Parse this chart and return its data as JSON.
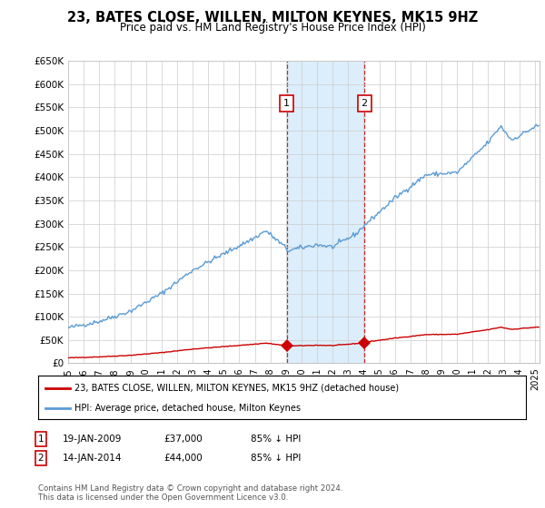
{
  "title": "23, BATES CLOSE, WILLEN, MILTON KEYNES, MK15 9HZ",
  "subtitle": "Price paid vs. HM Land Registry's House Price Index (HPI)",
  "hpi_color": "#5b9bd5",
  "price_color": "#cc0000",
  "shade_color": "#dceefb",
  "sale1_x": 2009.05,
  "sale2_x": 2014.04,
  "sale1_price": 37000,
  "sale2_price": 44000,
  "ylim": [
    0,
    650000
  ],
  "xlim_start": 1995.0,
  "xlim_end": 2025.3,
  "xtick_years": [
    1995,
    1996,
    1997,
    1998,
    1999,
    2000,
    2001,
    2002,
    2003,
    2004,
    2005,
    2006,
    2007,
    2008,
    2009,
    2010,
    2011,
    2012,
    2013,
    2014,
    2015,
    2016,
    2017,
    2018,
    2019,
    2020,
    2021,
    2022,
    2023,
    2024,
    2025
  ],
  "legend_house_label": "23, BATES CLOSE, WILLEN, MILTON KEYNES, MK15 9HZ (detached house)",
  "legend_hpi_label": "HPI: Average price, detached house, Milton Keynes",
  "footnote": "Contains HM Land Registry data © Crown copyright and database right 2024.\nThis data is licensed under the Open Government Licence v3.0.",
  "table_rows": [
    {
      "num": "1",
      "date": "19-JAN-2009",
      "price": "£37,000",
      "pct": "85% ↓ HPI"
    },
    {
      "num": "2",
      "date": "14-JAN-2014",
      "price": "£44,000",
      "pct": "85% ↓ HPI"
    }
  ]
}
